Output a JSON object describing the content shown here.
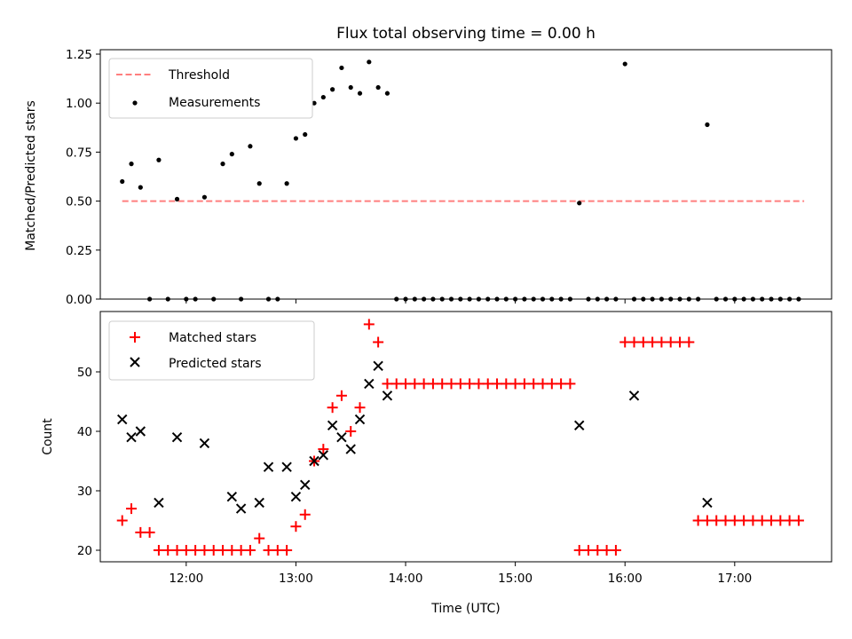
{
  "chart_data": [
    {
      "type": "scatter",
      "title": "Flux total observing time = 0.00 h",
      "xlabel": "",
      "ylabel": "Matched/Predicted stars",
      "ylim": [
        0,
        1.25
      ],
      "yticks": [
        "0.00",
        "0.25",
        "0.50",
        "0.75",
        "1.00",
        "1.25"
      ],
      "xlim": [
        "11:13",
        "17:53"
      ],
      "xtick_times": [
        "12:00",
        "13:00",
        "14:00",
        "15:00",
        "16:00",
        "17:00"
      ],
      "legend_position": "top-left",
      "threshold": {
        "name": "Threshold",
        "color": "#ff7f7f",
        "value": 0.5,
        "x_range": [
          "11:25",
          "17:38"
        ]
      },
      "series": [
        {
          "name": "Measurements",
          "marker": "dot",
          "color": "#000000",
          "x": [
            "11:25",
            "11:30",
            "11:35",
            "11:40",
            "11:45",
            "11:50",
            "11:55",
            "12:00",
            "12:05",
            "12:10",
            "12:15",
            "12:20",
            "12:25",
            "12:30",
            "12:35",
            "12:40",
            "12:45",
            "12:50",
            "12:55",
            "13:00",
            "13:05",
            "13:10",
            "13:15",
            "13:20",
            "13:25",
            "13:30",
            "13:35",
            "13:40",
            "13:45",
            "13:50",
            "13:55",
            "14:00",
            "14:05",
            "14:10",
            "14:15",
            "14:20",
            "14:25",
            "14:30",
            "14:35",
            "14:40",
            "14:45",
            "14:50",
            "14:55",
            "15:00",
            "15:05",
            "15:10",
            "15:15",
            "15:20",
            "15:25",
            "15:30",
            "15:35",
            "15:40",
            "15:45",
            "15:50",
            "15:55",
            "16:00",
            "16:05",
            "16:10",
            "16:15",
            "16:20",
            "16:25",
            "16:30",
            "16:35",
            "16:40",
            "16:45",
            "16:50",
            "16:55",
            "17:00",
            "17:05",
            "17:10",
            "17:15",
            "17:20",
            "17:25",
            "17:30",
            "17:35"
          ],
          "y": [
            0.6,
            0.69,
            0.57,
            0,
            0.71,
            0,
            0.51,
            0,
            0,
            0.52,
            0,
            0.69,
            0.74,
            0,
            0.78,
            0.59,
            0,
            0,
            0.59,
            0.82,
            0.84,
            1.0,
            1.03,
            1.07,
            1.18,
            1.08,
            1.05,
            1.21,
            1.08,
            1.05,
            0,
            0,
            0,
            0,
            0,
            0,
            0,
            0,
            0,
            0,
            0,
            0,
            0,
            0,
            0,
            0,
            0,
            0,
            0,
            0,
            0.49,
            0,
            0,
            0,
            0,
            1.2,
            0,
            0,
            0,
            0,
            0,
            0,
            0,
            0,
            0.89,
            0,
            0,
            0,
            0,
            0,
            0,
            0,
            0,
            0,
            0
          ]
        }
      ]
    },
    {
      "type": "scatter",
      "title": "",
      "xlabel": "Time (UTC)",
      "ylabel": "Count",
      "ylim": [
        18,
        59
      ],
      "yticks": [
        "20",
        "30",
        "40",
        "50"
      ],
      "xlim": [
        "11:13",
        "17:53"
      ],
      "xtick_times": [
        "12:00",
        "13:00",
        "14:00",
        "15:00",
        "16:00",
        "17:00"
      ],
      "legend_position": "top-left",
      "series": [
        {
          "name": "Matched stars",
          "marker": "plus",
          "color": "#ff0000",
          "x": [
            "11:25",
            "11:30",
            "11:35",
            "11:40",
            "11:45",
            "11:50",
            "11:55",
            "12:00",
            "12:05",
            "12:10",
            "12:15",
            "12:20",
            "12:25",
            "12:30",
            "12:35",
            "12:40",
            "12:45",
            "12:50",
            "12:55",
            "13:00",
            "13:05",
            "13:10",
            "13:15",
            "13:20",
            "13:25",
            "13:30",
            "13:35",
            "13:40",
            "13:45",
            "13:50",
            "13:55",
            "14:00",
            "14:05",
            "14:10",
            "14:15",
            "14:20",
            "14:25",
            "14:30",
            "14:35",
            "14:40",
            "14:45",
            "14:50",
            "14:55",
            "15:00",
            "15:05",
            "15:10",
            "15:15",
            "15:20",
            "15:25",
            "15:30",
            "15:35",
            "15:40",
            "15:45",
            "15:50",
            "15:55",
            "16:00",
            "16:05",
            "16:10",
            "16:15",
            "16:20",
            "16:25",
            "16:30",
            "16:35",
            "16:40",
            "16:45",
            "16:50",
            "16:55",
            "17:00",
            "17:05",
            "17:10",
            "17:15",
            "17:20",
            "17:25",
            "17:30",
            "17:35"
          ],
          "y": [
            25,
            27,
            23,
            23,
            20,
            20,
            20,
            20,
            20,
            20,
            20,
            20,
            20,
            20,
            20,
            22,
            20,
            20,
            20,
            24,
            26,
            35,
            37,
            44,
            46,
            40,
            44,
            58,
            55,
            48,
            48,
            48,
            48,
            48,
            48,
            48,
            48,
            48,
            48,
            48,
            48,
            48,
            48,
            48,
            48,
            48,
            48,
            48,
            48,
            48,
            20,
            20,
            20,
            20,
            20,
            55,
            55,
            55,
            55,
            55,
            55,
            55,
            55,
            25,
            25,
            25,
            25,
            25,
            25,
            25,
            25,
            25,
            25,
            25,
            25
          ]
        },
        {
          "name": "Predicted stars",
          "marker": "x",
          "color": "#000000",
          "x": [
            "11:25",
            "11:30",
            "11:35",
            "11:45",
            "11:55",
            "12:10",
            "12:25",
            "12:30",
            "12:40",
            "12:45",
            "12:55",
            "13:00",
            "13:05",
            "13:10",
            "13:15",
            "13:20",
            "13:25",
            "13:30",
            "13:35",
            "13:40",
            "13:45",
            "13:50",
            "15:35",
            "16:05",
            "16:45"
          ],
          "y": [
            42,
            39,
            40,
            28,
            39,
            38,
            29,
            27,
            28,
            34,
            34,
            29,
            31,
            35,
            36,
            41,
            39,
            37,
            42,
            48,
            51,
            46,
            41,
            46,
            28
          ]
        }
      ]
    }
  ]
}
